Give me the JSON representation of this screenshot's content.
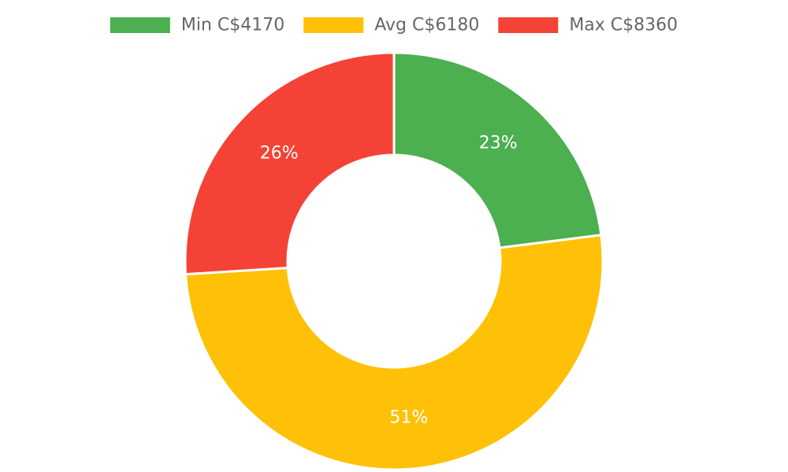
{
  "chart_data": {
    "type": "pie",
    "donut": true,
    "legend_position": "top",
    "categories": [
      "Min C$4170",
      "Avg C$6180",
      "Max C$8360"
    ],
    "values": [
      23,
      51,
      26
    ],
    "value_labels": [
      "23%",
      "51%",
      "26%"
    ],
    "colors": [
      "#4caf50",
      "#ffc107",
      "#f44336"
    ]
  }
}
